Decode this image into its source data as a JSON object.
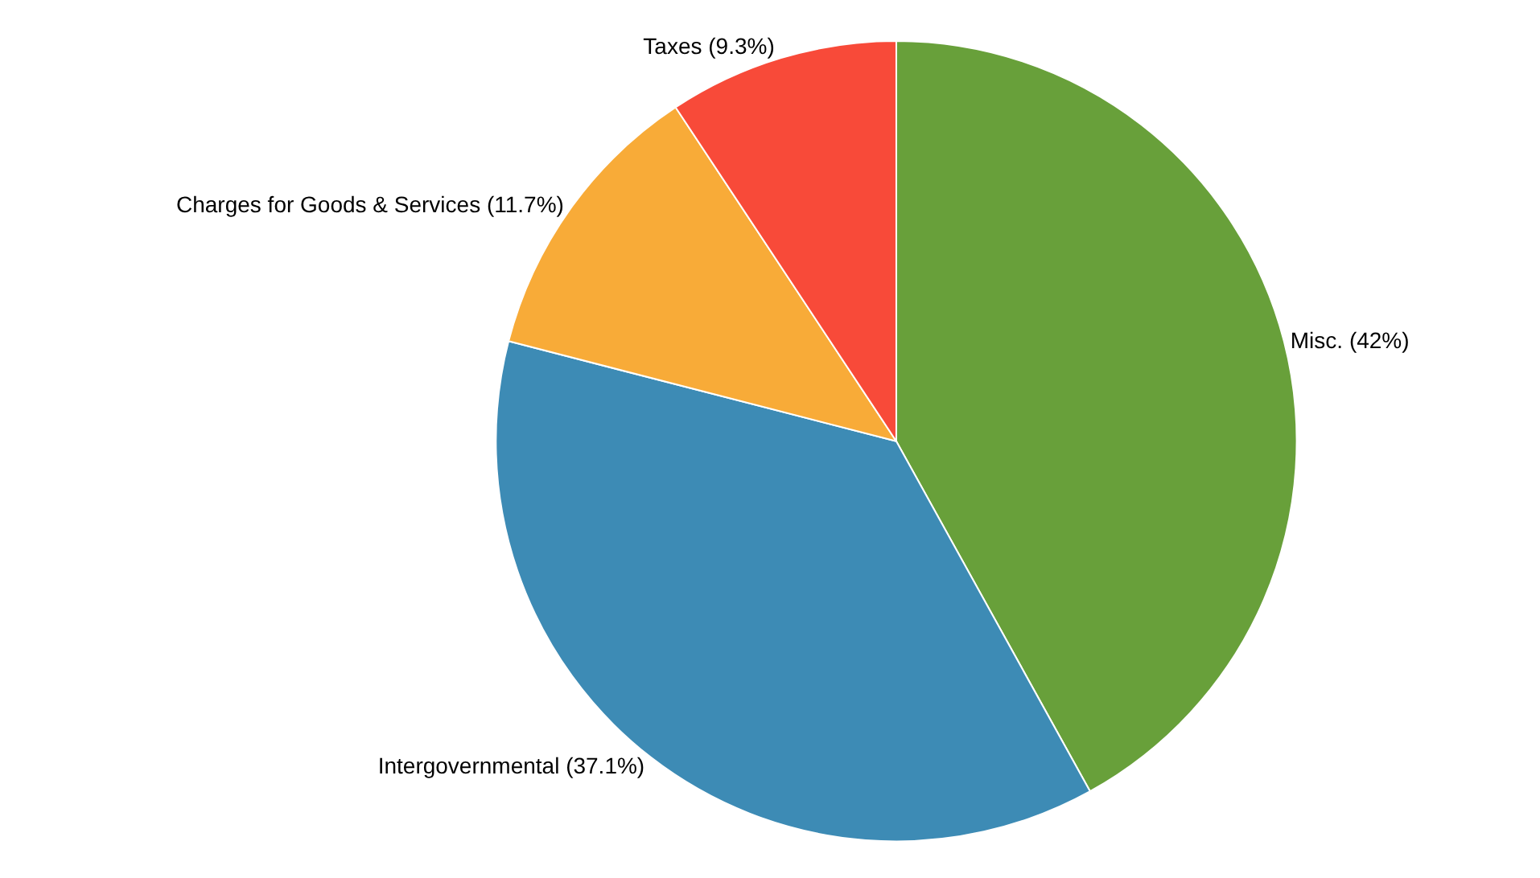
{
  "chart_data": {
    "type": "pie",
    "categories": [
      "Misc. (42%)",
      "Intergovernmental (37.1%)",
      "Charges for Goods & Services (11.7%)",
      "Taxes (9.3%)"
    ],
    "values": [
      42,
      37.1,
      11.7,
      9.3
    ],
    "colors": [
      "#68a03a",
      "#3d8bb5",
      "#f8ab38",
      "#f84a39"
    ],
    "legend": false
  }
}
